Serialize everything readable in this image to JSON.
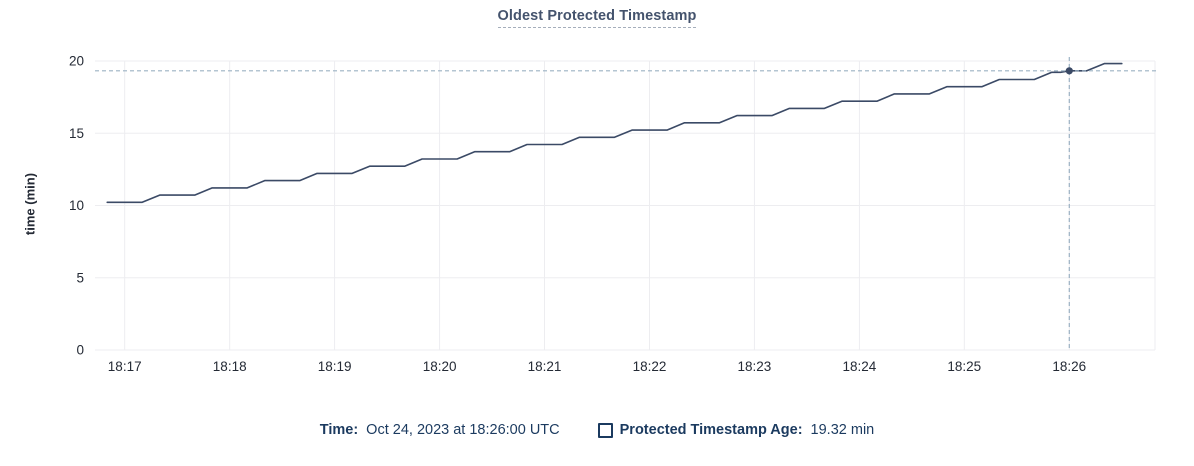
{
  "chart": {
    "title": "Oldest Protected Timestamp",
    "ylabel": "time (min)"
  },
  "legend": {
    "time_label": "Time:",
    "time_value": "Oct 24, 2023 at 18:26:00 UTC",
    "series_label": "Protected Timestamp Age:",
    "series_value": "19.32 min"
  },
  "chart_data": {
    "type": "line",
    "title": "Oldest Protected Timestamp",
    "xlabel": "",
    "ylabel": "time (min)",
    "ylim": [
      0,
      20
    ],
    "yticks": [
      0,
      5,
      10,
      15,
      20
    ],
    "xlim_seconds": [
      -17,
      589
    ],
    "xticks": [
      {
        "label": "18:17",
        "t": 0
      },
      {
        "label": "18:18",
        "t": 60
      },
      {
        "label": "18:19",
        "t": 120
      },
      {
        "label": "18:20",
        "t": 180
      },
      {
        "label": "18:21",
        "t": 240
      },
      {
        "label": "18:22",
        "t": 300
      },
      {
        "label": "18:23",
        "t": 360
      },
      {
        "label": "18:24",
        "t": 420
      },
      {
        "label": "18:25",
        "t": 480
      },
      {
        "label": "18:26",
        "t": 540
      }
    ],
    "grid": true,
    "legend_position": "bottom",
    "series": [
      {
        "name": "Protected Timestamp Age",
        "unit": "min",
        "color": "#3b4a66",
        "points": [
          [
            -10,
            10.22
          ],
          [
            10,
            10.22
          ],
          [
            20,
            10.72
          ],
          [
            40,
            10.72
          ],
          [
            50,
            11.22
          ],
          [
            70,
            11.22
          ],
          [
            80,
            11.72
          ],
          [
            100,
            11.72
          ],
          [
            110,
            12.22
          ],
          [
            130,
            12.22
          ],
          [
            140,
            12.72
          ],
          [
            160,
            12.72
          ],
          [
            170,
            13.22
          ],
          [
            190,
            13.22
          ],
          [
            200,
            13.72
          ],
          [
            220,
            13.72
          ],
          [
            230,
            14.22
          ],
          [
            250,
            14.22
          ],
          [
            260,
            14.72
          ],
          [
            280,
            14.72
          ],
          [
            290,
            15.22
          ],
          [
            310,
            15.22
          ],
          [
            320,
            15.72
          ],
          [
            340,
            15.72
          ],
          [
            350,
            16.22
          ],
          [
            370,
            16.22
          ],
          [
            380,
            16.72
          ],
          [
            400,
            16.72
          ],
          [
            410,
            17.22
          ],
          [
            430,
            17.22
          ],
          [
            440,
            17.72
          ],
          [
            460,
            17.72
          ],
          [
            470,
            18.22
          ],
          [
            490,
            18.22
          ],
          [
            500,
            18.72
          ],
          [
            520,
            18.72
          ],
          [
            530,
            19.22
          ],
          [
            535,
            19.22
          ],
          [
            540,
            19.32
          ],
          [
            550,
            19.32
          ],
          [
            560,
            19.82
          ],
          [
            570,
            19.82
          ]
        ]
      }
    ],
    "crosshair": {
      "t_seconds": 540,
      "value": 19.32,
      "time_label": "Oct 24, 2023 at 18:26:00 UTC"
    },
    "colors": {
      "line": "#3b4a66",
      "grid": "#ededf0",
      "axis_text": "#242a35",
      "crosshair": "#9cb2c4",
      "navy_text": "#1b3a5f",
      "title_text": "#44536d"
    }
  }
}
